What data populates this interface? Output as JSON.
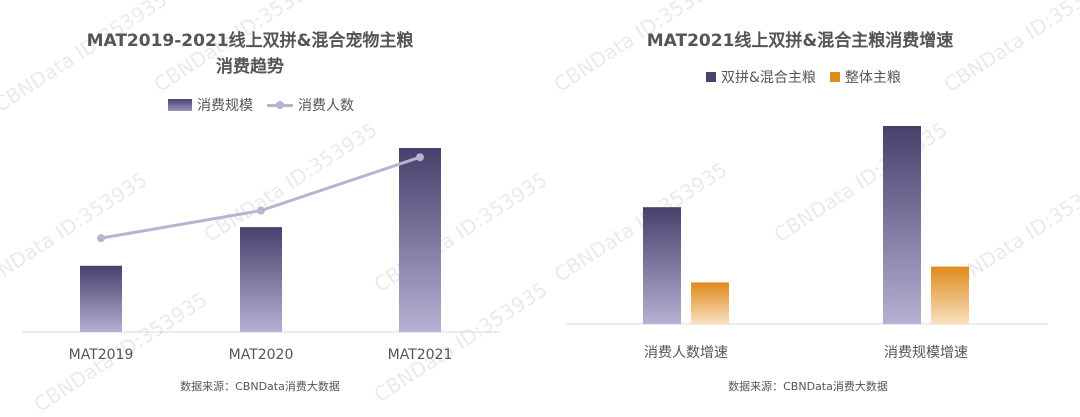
{
  "watermark": "CBNData ID:353935",
  "chart_data": [
    {
      "type": "bar",
      "title_line1": "MAT2019-2021线上双拼&混合宠物主粮",
      "title_line2": "消费趋势",
      "categories": [
        "MAT2019",
        "MAT2020",
        "MAT2021"
      ],
      "series": [
        {
          "name": "消费规模",
          "type": "bar",
          "values": [
            36,
            57,
            100
          ],
          "color": "#4a4470"
        },
        {
          "name": "消费人数",
          "type": "line",
          "values": [
            51,
            66,
            95
          ],
          "color": "#b9b3d3"
        }
      ],
      "ylim": [
        0,
        100
      ],
      "legend": "top",
      "grid": false,
      "source": "数据来源：CBNData消费大数据"
    },
    {
      "type": "bar",
      "title": "MAT2021线上双拼&混合主粮消费增速",
      "categories": [
        "消费人数增速",
        "消费规模增速"
      ],
      "series": [
        {
          "name": "双拼&混合主粮",
          "values": [
            59,
            100
          ],
          "color": "#4a4470"
        },
        {
          "name": "整体主粮",
          "values": [
            21,
            29
          ],
          "color": "#e08a1c"
        }
      ],
      "ylim": [
        0,
        100
      ],
      "legend": "top",
      "grid": false,
      "source": "数据来源：CBNData消费大数据"
    }
  ]
}
